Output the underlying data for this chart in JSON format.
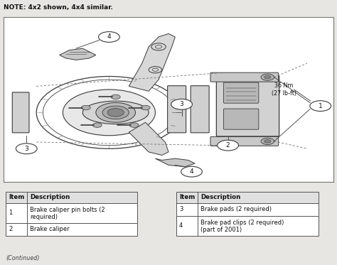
{
  "note_text": "NOTE: 4x2 shown, 4x4 similar.",
  "torque_label": "36 Nm\n(27 lb-ft)",
  "continued_text": "(Continued)",
  "bg_color": "#e8e6e2",
  "diagram_bg": "#ffffff",
  "table_left": {
    "headers": [
      "Item",
      "Description"
    ],
    "rows": [
      [
        "1",
        "Brake caliper pin bolts (2\nrequired)"
      ],
      [
        "2",
        "Brake caliper"
      ]
    ]
  },
  "table_right": {
    "headers": [
      "Item",
      "Description"
    ],
    "rows": [
      [
        "3",
        "Brake pads (2 required)"
      ],
      [
        "4",
        "Brake pad clips (2 required)\n(part of 2001)"
      ]
    ]
  },
  "fig_width": 4.74,
  "fig_height": 3.73,
  "dpi": 100,
  "line_color": "#3a3a3a",
  "text_color": "#111111",
  "light_gray": "#c8c8c8",
  "mid_gray": "#999999",
  "dark_gray": "#555555"
}
